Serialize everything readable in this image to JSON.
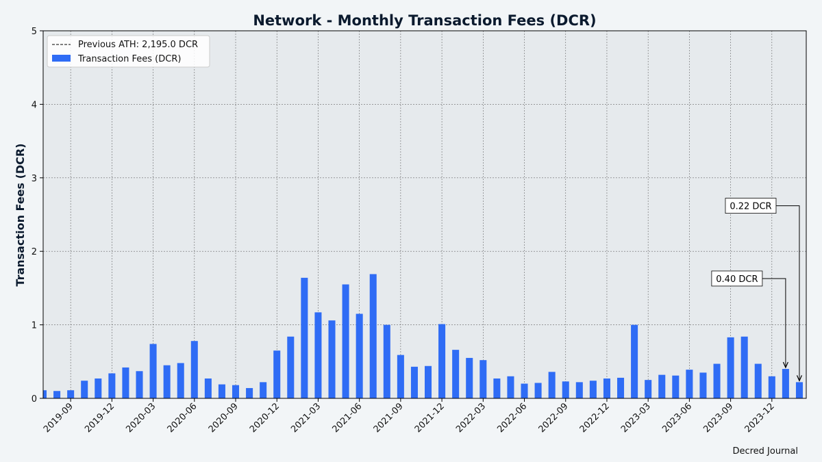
{
  "chart_data": {
    "type": "bar",
    "title": "Network - Monthly Transaction Fees (DCR)",
    "xlabel": "",
    "ylabel": "Transaction Fees (DCR)",
    "ylim": [
      0,
      5
    ],
    "yticks": [
      0,
      1,
      2,
      3,
      4,
      5
    ],
    "grid": true,
    "legend_position": "top-left",
    "categories": [
      "2019-07",
      "2019-08",
      "2019-09",
      "2019-10",
      "2019-11",
      "2019-12",
      "2020-01",
      "2020-02",
      "2020-03",
      "2020-04",
      "2020-05",
      "2020-06",
      "2020-07",
      "2020-08",
      "2020-09",
      "2020-10",
      "2020-11",
      "2020-12",
      "2021-01",
      "2021-02",
      "2021-03",
      "2021-04",
      "2021-05",
      "2021-06",
      "2021-07",
      "2021-08",
      "2021-09",
      "2021-10",
      "2021-11",
      "2021-12",
      "2022-01",
      "2022-02",
      "2022-03",
      "2022-04",
      "2022-05",
      "2022-06",
      "2022-07",
      "2022-08",
      "2022-09",
      "2022-10",
      "2022-11",
      "2022-12",
      "2023-01",
      "2023-02",
      "2023-03",
      "2023-04",
      "2023-05",
      "2023-06",
      "2023-07",
      "2023-08",
      "2023-09",
      "2023-10",
      "2023-11",
      "2023-12",
      "2024-01",
      "2024-02"
    ],
    "x_tick_labels": [
      "2019-09",
      "2019-12",
      "2020-03",
      "2020-06",
      "2020-09",
      "2020-12",
      "2021-03",
      "2021-06",
      "2021-09",
      "2021-12",
      "2022-03",
      "2022-06",
      "2022-09",
      "2022-12",
      "2023-03",
      "2023-06",
      "2023-09",
      "2023-12"
    ],
    "series": [
      {
        "name": "Transaction Fees (DCR)",
        "color": "#2f6cf5",
        "values": [
          0.11,
          0.1,
          0.11,
          0.24,
          0.27,
          0.34,
          0.42,
          0.37,
          0.74,
          0.45,
          0.48,
          0.78,
          0.27,
          0.19,
          0.18,
          0.14,
          0.22,
          0.65,
          0.84,
          1.64,
          1.17,
          1.06,
          1.55,
          1.15,
          1.69,
          1.0,
          0.59,
          0.43,
          0.44,
          1.01,
          0.66,
          0.55,
          0.52,
          0.27,
          0.3,
          0.2,
          0.21,
          0.36,
          0.23,
          0.22,
          0.24,
          0.27,
          0.28,
          1.0,
          0.25,
          0.32,
          0.31,
          0.39,
          0.35,
          0.47,
          0.83,
          0.84,
          0.47,
          0.3,
          0.4,
          0.22
        ]
      }
    ],
    "reference_line": {
      "label": "Previous ATH: 2,195.0 DCR",
      "style": "dashed",
      "color": "#000000"
    },
    "annotations": [
      {
        "text": "0.40 DCR",
        "category": "2024-01",
        "value": 0.4,
        "label_y": 1.63
      },
      {
        "text": "0.22 DCR",
        "category": "2024-02",
        "value": 0.22,
        "label_y": 2.62
      }
    ],
    "credit": "Decred Journal",
    "colors": {
      "figure_bg": "#f2f5f7",
      "plot_bg": "#e6eaed",
      "bar": "#2f6cf5",
      "grid": "#666666",
      "title": "#0b1a2e"
    }
  }
}
